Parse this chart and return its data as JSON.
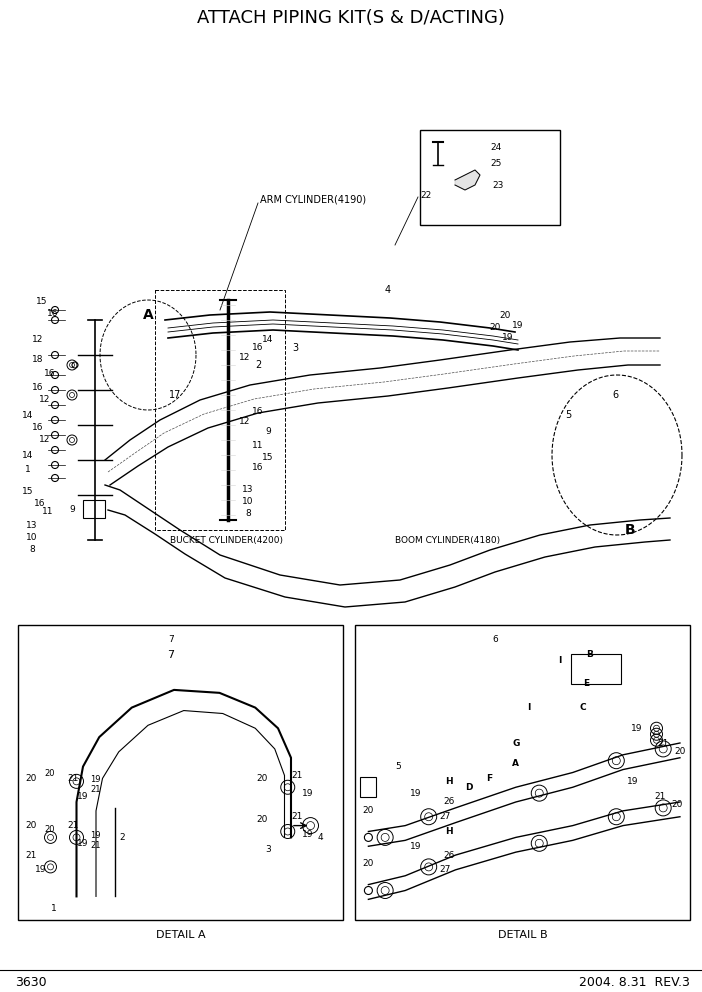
{
  "title": "ATTACH PIPING KIT(S & D/ACTING)",
  "page_number": "3630",
  "date_rev": "2004. 8.31  REV.3",
  "bg": "#ffffff",
  "title_fontsize": 13,
  "footer_fontsize": 9,
  "label_fontsize": 7,
  "small_fontsize": 6.5
}
